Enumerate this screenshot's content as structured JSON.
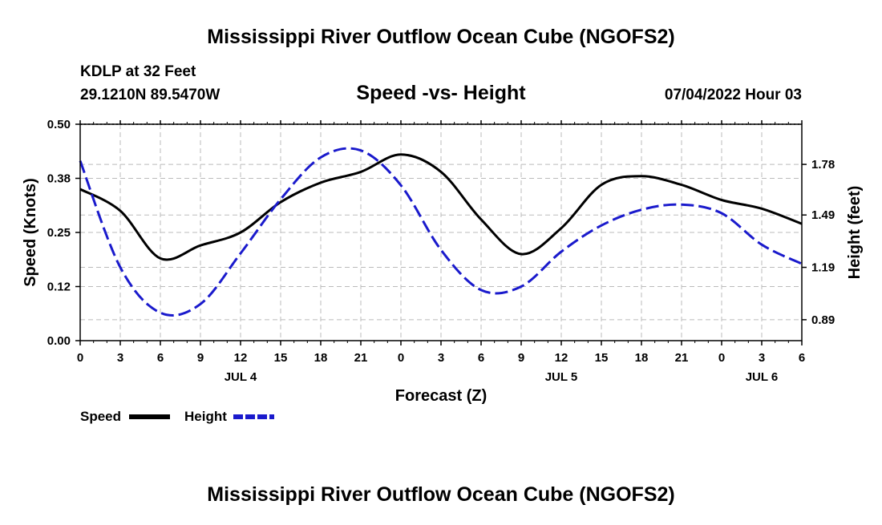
{
  "chart_data": {
    "type": "line",
    "title": "Mississippi River Outflow Ocean Cube (NGOFS2)",
    "footer_title": "Mississippi River Outflow Ocean Cube (NGOFS2)",
    "station": "KDLP at 32 Feet",
    "location": "29.1210N  89.5470W",
    "subtitle": "Speed -vs- Height",
    "datetime": "07/04/2022 Hour 03",
    "xlabel": "Forecast (Z)",
    "ylabel_left": "Speed (Knots)",
    "ylabel_right": "Height (feet)",
    "x_range": [
      0,
      54
    ],
    "x_tick_labels": [
      "0",
      "3",
      "6",
      "9",
      "12",
      "15",
      "18",
      "21",
      "0",
      "3",
      "6",
      "9",
      "12",
      "15",
      "18",
      "21",
      "0",
      "3",
      "6"
    ],
    "date_labels": [
      {
        "label": "JUL 4",
        "x": 12
      },
      {
        "label": "JUL 5",
        "x": 36
      },
      {
        "label": "JUL 6",
        "x": 51
      }
    ],
    "ylim_left": [
      0,
      0.5
    ],
    "y_ticks_left": [
      "0.00",
      "0.12",
      "0.25",
      "0.38",
      "0.50"
    ],
    "ylim_right": [
      0.77,
      2.01
    ],
    "y_ticks_right_values": [
      0.89,
      1.19,
      1.49,
      1.78
    ],
    "y_ticks_right": [
      "0.89",
      "1.19",
      "1.49",
      "1.78"
    ],
    "grid": true,
    "legend": [
      {
        "name": "Speed",
        "color": "#000000",
        "style": "solid"
      },
      {
        "name": "Height",
        "color": "#1a1acc",
        "style": "dashed"
      }
    ],
    "series": [
      {
        "name": "Speed",
        "axis": "left",
        "color": "#000000",
        "x": [
          0,
          3,
          6,
          9,
          12,
          15,
          18,
          21,
          24,
          27,
          30,
          33,
          36,
          39,
          42,
          45,
          48,
          51,
          54
        ],
        "values": [
          0.35,
          0.3,
          0.19,
          0.22,
          0.25,
          0.32,
          0.365,
          0.39,
          0.43,
          0.39,
          0.28,
          0.2,
          0.26,
          0.36,
          0.38,
          0.36,
          0.325,
          0.305,
          0.27
        ]
      },
      {
        "name": "Height",
        "axis": "right",
        "color": "#1a1acc",
        "x": [
          0,
          3,
          6,
          9,
          12,
          15,
          18,
          21,
          24,
          27,
          30,
          33,
          36,
          39,
          42,
          45,
          48,
          51,
          54
        ],
        "values": [
          1.8,
          1.19,
          0.93,
          0.98,
          1.27,
          1.58,
          1.82,
          1.86,
          1.66,
          1.29,
          1.06,
          1.08,
          1.28,
          1.43,
          1.52,
          1.55,
          1.5,
          1.32,
          1.21
        ]
      }
    ]
  }
}
